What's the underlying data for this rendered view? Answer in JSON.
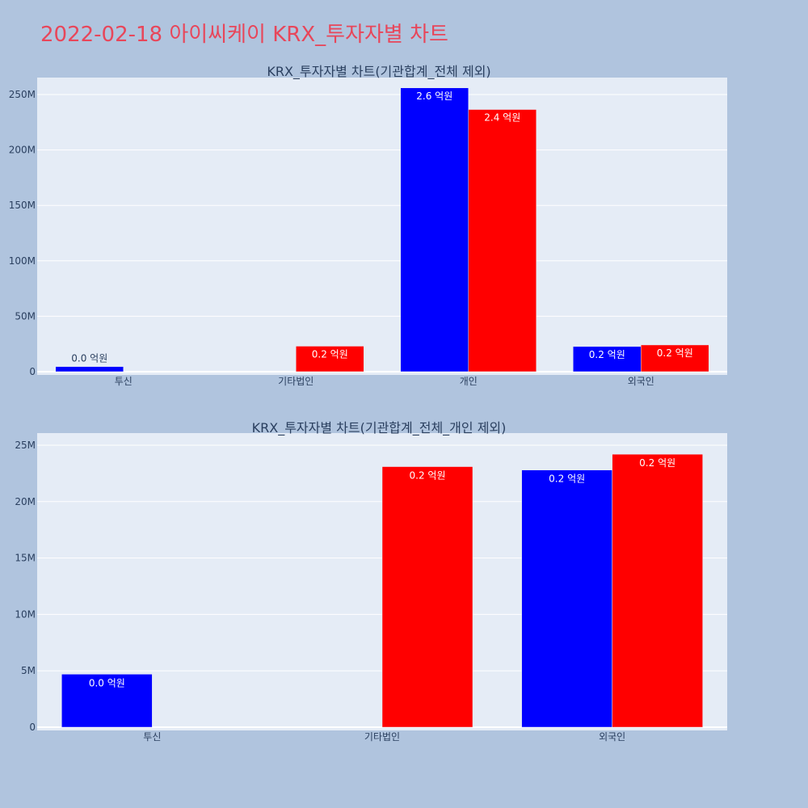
{
  "page": {
    "title": "2022-02-18 아이씨케이 KRX_투자자별 차트",
    "title_color": "#e8465a",
    "background": "#b0c4de",
    "plot_background": "#e5ecf6"
  },
  "chart_data": [
    {
      "type": "bar",
      "title": "KRX_투자자별 차트(기관합계_전체 제외)",
      "categories": [
        "투신",
        "기타법인",
        "개인",
        "외국인"
      ],
      "ylim": [
        0,
        270000000
      ],
      "yticks": [
        0,
        50000000,
        100000000,
        150000000,
        200000000,
        250000000
      ],
      "ytick_labels": [
        "0",
        "50M",
        "100M",
        "150M",
        "200M",
        "250M"
      ],
      "series": [
        {
          "color": "#0000ff",
          "values": [
            4600000,
            null,
            256000000,
            22700000
          ],
          "labels": [
            "0.0 억원",
            "",
            "2.6 억원",
            "0.2 억원"
          ]
        },
        {
          "color": "#ff0000",
          "values": [
            null,
            23000000,
            236500000,
            24100000
          ],
          "labels": [
            "",
            "0.2 억원",
            "2.4 억원",
            "0.2 억원"
          ]
        }
      ],
      "grid": true
    },
    {
      "type": "bar",
      "title": "KRX_투자자별 차트(기관합계_전체_개인 제외)",
      "categories": [
        "투신",
        "기타법인",
        "외국인"
      ],
      "ylim": [
        0,
        25500000
      ],
      "yticks": [
        0,
        5000000,
        10000000,
        15000000,
        20000000,
        25000000
      ],
      "ytick_labels": [
        "0",
        "5M",
        "10M",
        "15M",
        "20M",
        "25M"
      ],
      "series": [
        {
          "color": "#0000ff",
          "values": [
            4700000,
            null,
            22800000
          ],
          "labels": [
            "0.0 억원",
            "",
            "0.2 억원"
          ]
        },
        {
          "color": "#ff0000",
          "values": [
            null,
            23100000,
            24200000
          ],
          "labels": [
            "",
            "0.2 억원",
            "0.2 억원"
          ]
        }
      ],
      "grid": true
    }
  ]
}
